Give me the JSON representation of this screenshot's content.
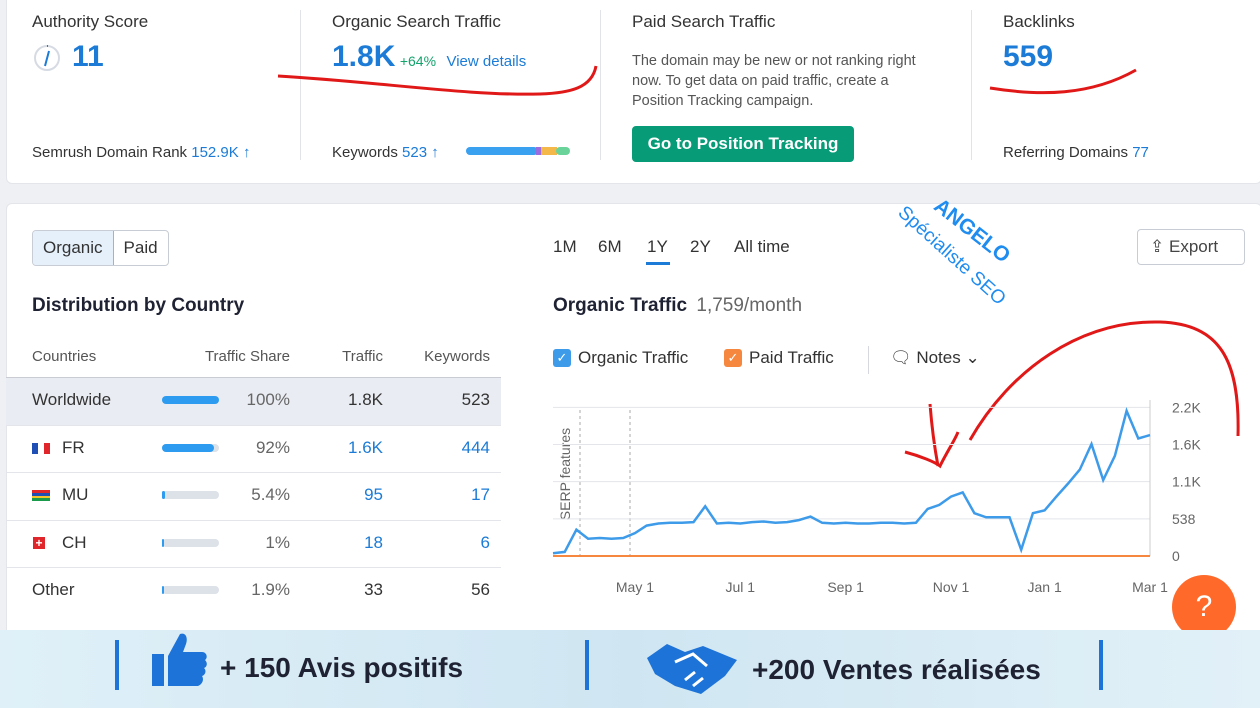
{
  "metrics": [
    {
      "title": "Authority Score",
      "value": "11",
      "footer_label": "Semrush Domain Rank",
      "footer_value": "152.9K ↑"
    },
    {
      "title": "Organic Search Traffic",
      "value": "1.8K",
      "change": "+64%",
      "link": "View details",
      "footer_label": "Keywords",
      "footer_value": "523 ↑"
    },
    {
      "title": "Paid Search Traffic",
      "description": "The domain may be new or not ranking right now. To get data on paid traffic, create a Position Tracking campaign.",
      "button": "Go to Position Tracking"
    },
    {
      "title": "Backlinks",
      "value": "559",
      "footer_label": "Referring Domains",
      "footer_value": "77"
    }
  ],
  "tabs": [
    "Organic",
    "Paid"
  ],
  "section_title": "Distribution by Country",
  "table": {
    "headers": [
      "Countries",
      "Traffic Share",
      "Traffic",
      "Keywords"
    ],
    "rows": [
      {
        "country": "Worldwide",
        "share": 100,
        "share_label": "100%",
        "traffic": "1.8K",
        "keywords": "523"
      },
      {
        "country": "FR",
        "share": 92,
        "share_label": "92%",
        "traffic": "1.6K",
        "keywords": "444"
      },
      {
        "country": "MU",
        "share": 5.4,
        "share_label": "5.4%",
        "traffic": "95",
        "keywords": "17"
      },
      {
        "country": "CH",
        "share": 1,
        "share_label": "1%",
        "traffic": "18",
        "keywords": "6"
      },
      {
        "country": "Other",
        "share": 1.9,
        "share_label": "1.9%",
        "traffic": "33",
        "keywords": "56"
      }
    ]
  },
  "periods": [
    "1M",
    "6M",
    "1Y",
    "2Y",
    "All time"
  ],
  "export": "Export",
  "notes": "Notes",
  "annotations": [
    "ANGELO",
    "Spécialiste SEO"
  ],
  "help": "?",
  "banner": [
    "+ 150 Avis positifs",
    "+200 Ventes réalisées"
  ],
  "chart_data": {
    "type": "line",
    "title": "Organic Traffic",
    "subtitle": "1,759/month",
    "side_label": "SERP features",
    "categories": [
      null,
      null,
      null,
      null,
      null,
      null,
      null,
      "May 1",
      null,
      null,
      null,
      null,
      null,
      null,
      null,
      null,
      "Jul 1",
      null,
      null,
      null,
      null,
      null,
      null,
      null,
      null,
      "Sep 1",
      null,
      null,
      null,
      null,
      null,
      null,
      null,
      null,
      "Nov 1",
      null,
      null,
      null,
      null,
      null,
      null,
      null,
      "Jan 1",
      null,
      null,
      null,
      null,
      null,
      null,
      null,
      null,
      "Mar 1"
    ],
    "series": [
      {
        "name": "Organic Traffic",
        "color": "#3d9be9",
        "values": [
          40,
          60,
          380,
          250,
          260,
          250,
          260,
          330,
          440,
          470,
          480,
          480,
          490,
          720,
          470,
          480,
          470,
          490,
          500,
          480,
          490,
          520,
          570,
          480,
          470,
          480,
          470,
          470,
          480,
          480,
          470,
          480,
          680,
          740,
          860,
          920,
          620,
          560,
          560,
          560,
          90,
          620,
          660,
          860,
          1050,
          1250,
          1620,
          1100,
          1450,
          2100,
          1700,
          1750
        ]
      },
      {
        "name": "Paid Traffic",
        "color": "#f5883e",
        "values": [
          0,
          0,
          0,
          0,
          0,
          0,
          0,
          0,
          0,
          0,
          0,
          0,
          0,
          0,
          0,
          0,
          0,
          0,
          0,
          0,
          0,
          0,
          0,
          0,
          0,
          0,
          0,
          0,
          0,
          0,
          0,
          0,
          0,
          0,
          0,
          0,
          0,
          0,
          0,
          0,
          0,
          0,
          0,
          0,
          0,
          0,
          0,
          0,
          0,
          0,
          0,
          0
        ]
      }
    ],
    "ylim": [
      0,
      2200
    ],
    "yticks": [
      0,
      538,
      {
        "value": 1076,
        "label": "1.1K"
      },
      {
        "value": 1614,
        "label": "1.6K"
      },
      {
        "value": 2152,
        "label": "2.2K"
      }
    ],
    "grid": true
  }
}
